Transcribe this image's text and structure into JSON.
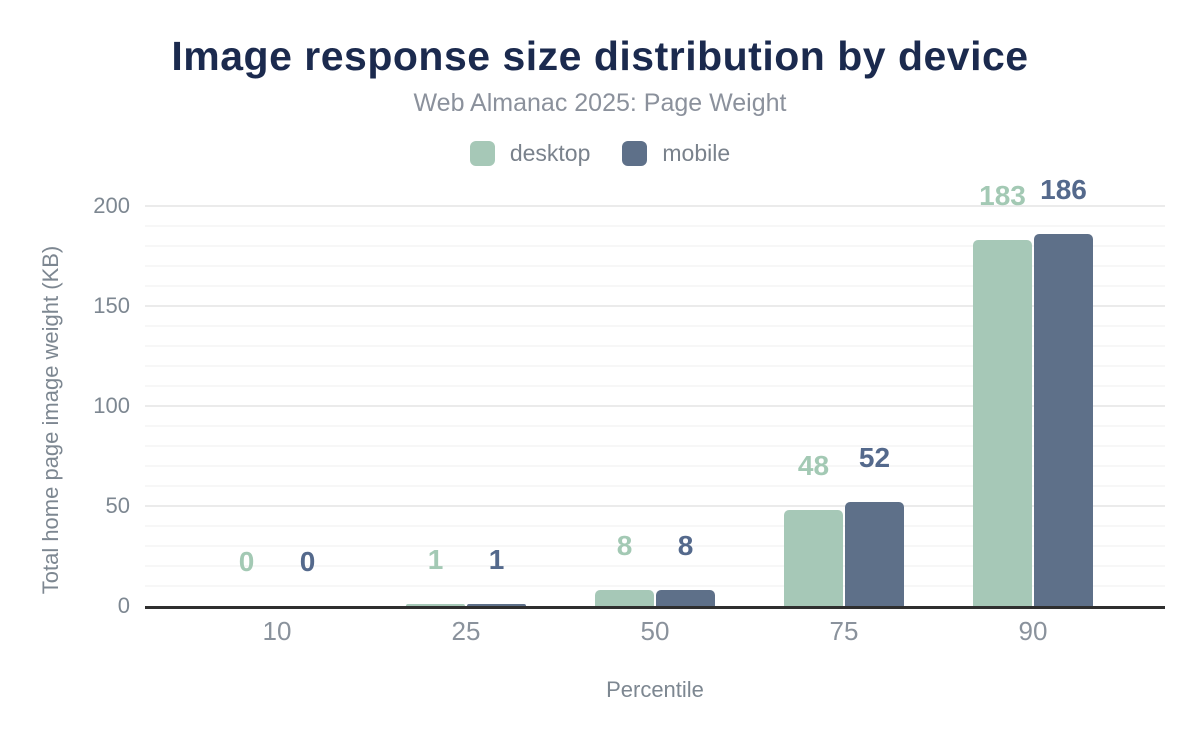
{
  "page": {
    "title": "Image response size distribution by device",
    "subtitle": "Web Almanac 2025: Page Weight"
  },
  "colors": {
    "background": "#ffffff",
    "title": "#1b2a4e",
    "subtitle": "#8b919c",
    "legend_text": "#7a828c",
    "axis_title_text": "#7d8791",
    "y_tick_text": "#7d8791",
    "x_tick_text": "#8a929c",
    "axis_line": "#2f2f2f",
    "grid_minor": "#f7f7f7",
    "grid_major": "#ebebeb",
    "desktop": "#a6c8b7",
    "mobile": "#5e7089",
    "desktop_label": "#a3c9b4",
    "mobile_label": "#54698c"
  },
  "legend": {
    "items": [
      {
        "label": "desktop",
        "color": "#a6c8b7"
      },
      {
        "label": "mobile",
        "color": "#5e7089"
      }
    ]
  },
  "chart_data": {
    "type": "bar",
    "title": "Image response size distribution by device",
    "subtitle": "Web Almanac 2025: Page Weight",
    "categories": [
      "10",
      "25",
      "50",
      "75",
      "90"
    ],
    "series": [
      {
        "name": "desktop",
        "color": "#a6c8b7",
        "label_color": "#a3c9b4",
        "values": [
          0,
          1,
          8,
          48,
          183
        ]
      },
      {
        "name": "mobile",
        "color": "#5e7089",
        "label_color": "#54698c",
        "values": [
          0,
          1,
          8,
          52,
          186
        ]
      }
    ],
    "xlabel": "Percentile",
    "ylabel": "Total home page image weight (KB)",
    "ylim": [
      0,
      200
    ],
    "yticks": [
      0,
      50,
      100,
      150,
      200
    ],
    "grid": {
      "horizontal": true,
      "minor_step_kb": 10,
      "major_step_kb": 50
    },
    "legend_position": "top",
    "bar_value_labels": true
  }
}
